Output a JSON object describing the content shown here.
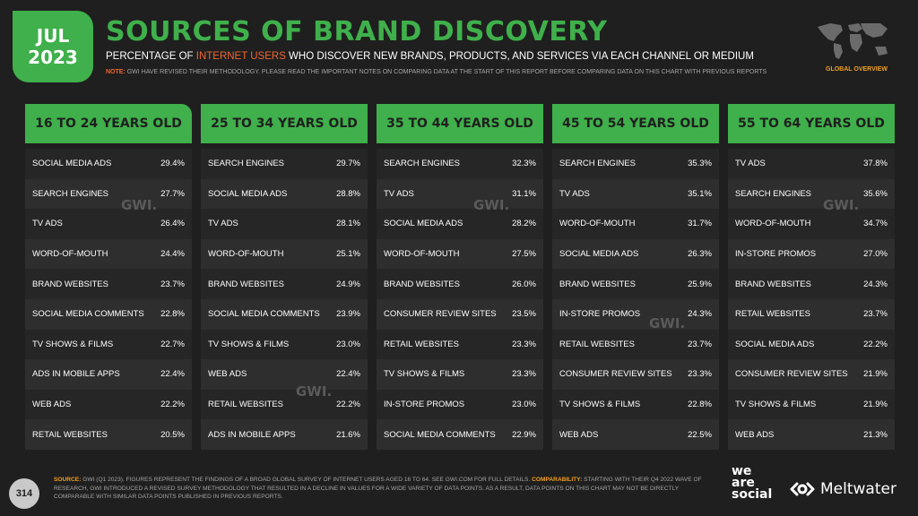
{
  "badge": {
    "month": "JUL",
    "year": "2023"
  },
  "title": "SOURCES OF BRAND DISCOVERY",
  "subtitle": {
    "pre": "PERCENTAGE OF ",
    "highlight": "INTERNET USERS",
    "post": " WHO DISCOVER NEW BRANDS, PRODUCTS, AND SERVICES VIA EACH CHANNEL OR MEDIUM"
  },
  "note": {
    "label": "NOTE:",
    "text": " GWI HAVE REVISED THEIR METHODOLOGY. PLEASE READ THE IMPORTANT NOTES ON COMPARING DATA AT THE START OF THIS REPORT BEFORE COMPARING DATA ON THIS CHART WITH PREVIOUS REPORTS"
  },
  "region_label": "GLOBAL OVERVIEW",
  "watermark": "GWI.",
  "page_number": "314",
  "source": {
    "label": "SOURCE:",
    "text": " GWI (Q1 2023). FIGURES REPRESENT THE FINDINGS OF A BROAD GLOBAL SURVEY OF INTERNET USERS AGED 16 TO 64. SEE GWI.COM FOR FULL DETAILS. ",
    "comp_label": "COMPARABILITY:",
    "comp_text": " STARTING WITH THEIR Q4 2022 WAVE OF RESEARCH, GWI INTRODUCED A REVISED SURVEY METHODOLOGY THAT RESULTED IN A DECLINE IN VALUES FOR A WIDE VARIETY OF DATA POINTS. AS A RESULT, DATA POINTS ON THIS CHART MAY NOT BE DIRECTLY COMPARABLE WITH SIMILAR DATA POINTS PUBLISHED IN PREVIOUS REPORTS."
  },
  "logos": {
    "we_are_social": [
      "we",
      "are",
      "social"
    ],
    "meltwater": "Meltwater"
  },
  "colors": {
    "accent": "#3fb04b",
    "highlight": "#f0652f",
    "background": "#1f1f1f"
  },
  "chart_data": {
    "type": "table",
    "title": "SOURCES OF BRAND DISCOVERY",
    "panels": [
      {
        "name": "16 TO 24 YEARS OLD",
        "rows": [
          {
            "label": "SOCIAL MEDIA ADS",
            "value": "29.4%"
          },
          {
            "label": "SEARCH ENGINES",
            "value": "27.7%"
          },
          {
            "label": "TV ADS",
            "value": "26.4%"
          },
          {
            "label": "WORD-OF-MOUTH",
            "value": "24.4%"
          },
          {
            "label": "BRAND WEBSITES",
            "value": "23.7%"
          },
          {
            "label": "SOCIAL MEDIA COMMENTS",
            "value": "22.8%"
          },
          {
            "label": "TV SHOWS & FILMS",
            "value": "22.7%"
          },
          {
            "label": "ADS IN MOBILE APPS",
            "value": "22.4%"
          },
          {
            "label": "WEB ADS",
            "value": "22.2%"
          },
          {
            "label": "RETAIL WEBSITES",
            "value": "20.5%"
          }
        ]
      },
      {
        "name": "25 TO 34 YEARS OLD",
        "rows": [
          {
            "label": "SEARCH ENGINES",
            "value": "29.7%"
          },
          {
            "label": "SOCIAL MEDIA ADS",
            "value": "28.8%"
          },
          {
            "label": "TV ADS",
            "value": "28.1%"
          },
          {
            "label": "WORD-OF-MOUTH",
            "value": "25.1%"
          },
          {
            "label": "BRAND WEBSITES",
            "value": "24.9%"
          },
          {
            "label": "SOCIAL MEDIA COMMENTS",
            "value": "23.9%"
          },
          {
            "label": "TV SHOWS & FILMS",
            "value": "23.0%"
          },
          {
            "label": "WEB ADS",
            "value": "22.4%"
          },
          {
            "label": "RETAIL WEBSITES",
            "value": "22.2%"
          },
          {
            "label": "ADS IN MOBILE APPS",
            "value": "21.6%"
          }
        ]
      },
      {
        "name": "35 TO 44 YEARS OLD",
        "rows": [
          {
            "label": "SEARCH ENGINES",
            "value": "32.3%"
          },
          {
            "label": "TV ADS",
            "value": "31.1%"
          },
          {
            "label": "SOCIAL MEDIA ADS",
            "value": "28.2%"
          },
          {
            "label": "WORD-OF-MOUTH",
            "value": "27.5%"
          },
          {
            "label": "BRAND WEBSITES",
            "value": "26.0%"
          },
          {
            "label": "CONSUMER REVIEW SITES",
            "value": "23.5%"
          },
          {
            "label": "RETAIL WEBSITES",
            "value": "23.3%"
          },
          {
            "label": "TV SHOWS & FILMS",
            "value": "23.3%"
          },
          {
            "label": "IN-STORE PROMOS",
            "value": "23.0%"
          },
          {
            "label": "SOCIAL MEDIA COMMENTS",
            "value": "22.9%"
          }
        ]
      },
      {
        "name": "45 TO 54 YEARS OLD",
        "rows": [
          {
            "label": "SEARCH ENGINES",
            "value": "35.3%"
          },
          {
            "label": "TV ADS",
            "value": "35.1%"
          },
          {
            "label": "WORD-OF-MOUTH",
            "value": "31.7%"
          },
          {
            "label": "SOCIAL MEDIA ADS",
            "value": "26.3%"
          },
          {
            "label": "BRAND WEBSITES",
            "value": "25.9%"
          },
          {
            "label": "IN-STORE PROMOS",
            "value": "24.3%"
          },
          {
            "label": "RETAIL WEBSITES",
            "value": "23.7%"
          },
          {
            "label": "CONSUMER REVIEW SITES",
            "value": "23.3%"
          },
          {
            "label": "TV SHOWS & FILMS",
            "value": "22.8%"
          },
          {
            "label": "WEB ADS",
            "value": "22.5%"
          }
        ]
      },
      {
        "name": "55 TO 64 YEARS OLD",
        "rows": [
          {
            "label": "TV ADS",
            "value": "37.8%"
          },
          {
            "label": "SEARCH ENGINES",
            "value": "35.6%"
          },
          {
            "label": "WORD-OF-MOUTH",
            "value": "34.7%"
          },
          {
            "label": "IN-STORE PROMOS",
            "value": "27.0%"
          },
          {
            "label": "BRAND WEBSITES",
            "value": "24.3%"
          },
          {
            "label": "RETAIL WEBSITES",
            "value": "23.7%"
          },
          {
            "label": "SOCIAL MEDIA ADS",
            "value": "22.2%"
          },
          {
            "label": "CONSUMER REVIEW SITES",
            "value": "21.9%"
          },
          {
            "label": "TV SHOWS & FILMS",
            "value": "21.9%"
          },
          {
            "label": "WEB ADS",
            "value": "21.3%"
          }
        ]
      }
    ]
  }
}
